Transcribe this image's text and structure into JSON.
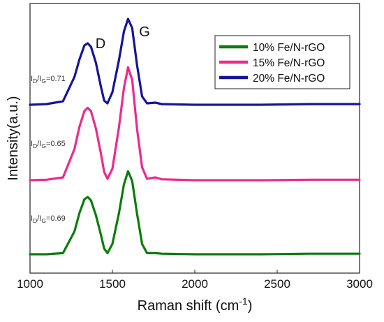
{
  "chart_data": {
    "type": "line",
    "xlabel_base": "Raman shift (cm",
    "xlabel_sup": "-1",
    "xlabel_tail": ")",
    "ylabel": "Intensity(a.u.)",
    "xlim": [
      1000,
      3000
    ],
    "x_ticks": [
      1000,
      1500,
      2000,
      2500,
      3000
    ],
    "y_ticks_shown": false,
    "grid": false,
    "legend_position": "top-right",
    "peak_labels": [
      {
        "text": "D",
        "x": 1350
      },
      {
        "text": "G",
        "x": 1600
      }
    ],
    "series": [
      {
        "name": "10% Fe/N-rGO",
        "color": "#0a7d0a",
        "ratio_label": {
          "base": "I",
          "sub1": "D",
          "sep": "/I",
          "sub2": "G",
          "value": "=0.69"
        },
        "points": [
          [
            1000,
            0.0
          ],
          [
            1100,
            0.0
          ],
          [
            1200,
            0.02
          ],
          [
            1270,
            0.4
          ],
          [
            1300,
            0.72
          ],
          [
            1330,
            0.96
          ],
          [
            1350,
            1.0
          ],
          [
            1370,
            0.94
          ],
          [
            1400,
            0.68
          ],
          [
            1430,
            0.34
          ],
          [
            1450,
            0.1
          ],
          [
            1470,
            0.02
          ],
          [
            1500,
            0.18
          ],
          [
            1540,
            0.72
          ],
          [
            1570,
            1.22
          ],
          [
            1595,
            1.45
          ],
          [
            1620,
            1.28
          ],
          [
            1650,
            0.7
          ],
          [
            1680,
            0.18
          ],
          [
            1710,
            0.02
          ],
          [
            1760,
            0.02
          ],
          [
            1800,
            0.01
          ],
          [
            2000,
            0.0
          ],
          [
            2400,
            0.0
          ],
          [
            2700,
            0.01
          ],
          [
            3000,
            0.01
          ]
        ]
      },
      {
        "name": "15% Fe/N-rGO",
        "color": "#ee2a8c",
        "ratio_label": {
          "base": "I",
          "sub1": "D",
          "sep": "/I",
          "sub2": "G",
          "value": "=0.65"
        },
        "points": [
          [
            1000,
            0.0
          ],
          [
            1100,
            0.01
          ],
          [
            1200,
            0.06
          ],
          [
            1270,
            0.68
          ],
          [
            1300,
            1.16
          ],
          [
            1330,
            1.5
          ],
          [
            1350,
            1.57
          ],
          [
            1370,
            1.5
          ],
          [
            1400,
            1.12
          ],
          [
            1430,
            0.58
          ],
          [
            1450,
            0.18
          ],
          [
            1470,
            0.03
          ],
          [
            1500,
            0.25
          ],
          [
            1540,
            1.15
          ],
          [
            1570,
            2.0
          ],
          [
            1595,
            2.45
          ],
          [
            1620,
            2.18
          ],
          [
            1650,
            1.1
          ],
          [
            1680,
            0.28
          ],
          [
            1710,
            0.03
          ],
          [
            1760,
            0.06
          ],
          [
            1800,
            0.02
          ],
          [
            2000,
            0.0
          ],
          [
            2400,
            0.0
          ],
          [
            2700,
            0.01
          ],
          [
            3000,
            0.01
          ]
        ]
      },
      {
        "name": "20% Fe/N-rGO",
        "color": "#14149a",
        "ratio_label": {
          "base": "I",
          "sub1": "D",
          "sep": "/I",
          "sub2": "G",
          "value": "=0.71"
        },
        "points": [
          [
            1000,
            0.0
          ],
          [
            1100,
            0.01
          ],
          [
            1200,
            0.05
          ],
          [
            1270,
            0.4
          ],
          [
            1300,
            0.65
          ],
          [
            1330,
            0.85
          ],
          [
            1350,
            0.88
          ],
          [
            1370,
            0.83
          ],
          [
            1400,
            0.6
          ],
          [
            1430,
            0.26
          ],
          [
            1450,
            0.06
          ],
          [
            1470,
            0.02
          ],
          [
            1500,
            0.18
          ],
          [
            1540,
            0.64
          ],
          [
            1570,
            1.05
          ],
          [
            1595,
            1.23
          ],
          [
            1620,
            1.1
          ],
          [
            1650,
            0.56
          ],
          [
            1680,
            0.12
          ],
          [
            1710,
            0.02
          ],
          [
            1760,
            0.03
          ],
          [
            1800,
            0.01
          ],
          [
            2000,
            0.0
          ],
          [
            2400,
            0.0
          ],
          [
            2700,
            0.01
          ],
          [
            3000,
            0.01
          ]
        ]
      }
    ]
  }
}
